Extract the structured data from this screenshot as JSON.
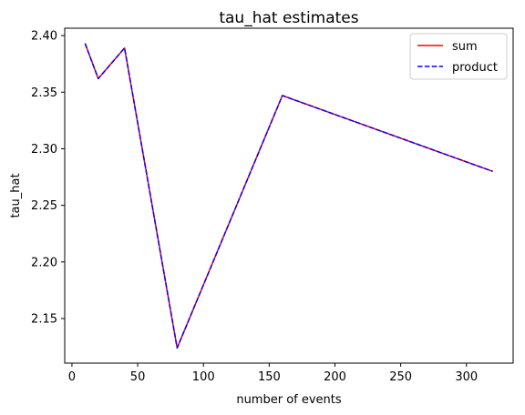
{
  "chart_data": {
    "type": "line",
    "title": "tau_hat estimates",
    "xlabel": "number of events",
    "ylabel": "tau_hat",
    "x": [
      10,
      20,
      40,
      80,
      160,
      320
    ],
    "series": [
      {
        "name": "sum",
        "values": [
          2.393,
          2.362,
          2.389,
          2.124,
          2.347,
          2.28
        ],
        "color": "#ff0000",
        "style": "solid"
      },
      {
        "name": "product",
        "values": [
          2.393,
          2.362,
          2.389,
          2.124,
          2.347,
          2.28
        ],
        "color": "#0000ff",
        "style": "dashed"
      }
    ],
    "xlim": [
      -5.5,
      335.5
    ],
    "ylim": [
      2.1106,
      2.4065
    ],
    "xticks": [
      0,
      50,
      100,
      150,
      200,
      250,
      300
    ],
    "yticks": [
      2.15,
      2.2,
      2.25,
      2.3,
      2.35,
      2.4
    ],
    "ytick_labels": [
      "2.15",
      "2.20",
      "2.25",
      "2.30",
      "2.35",
      "2.40"
    ],
    "grid": false,
    "legend_position": "top-right"
  }
}
